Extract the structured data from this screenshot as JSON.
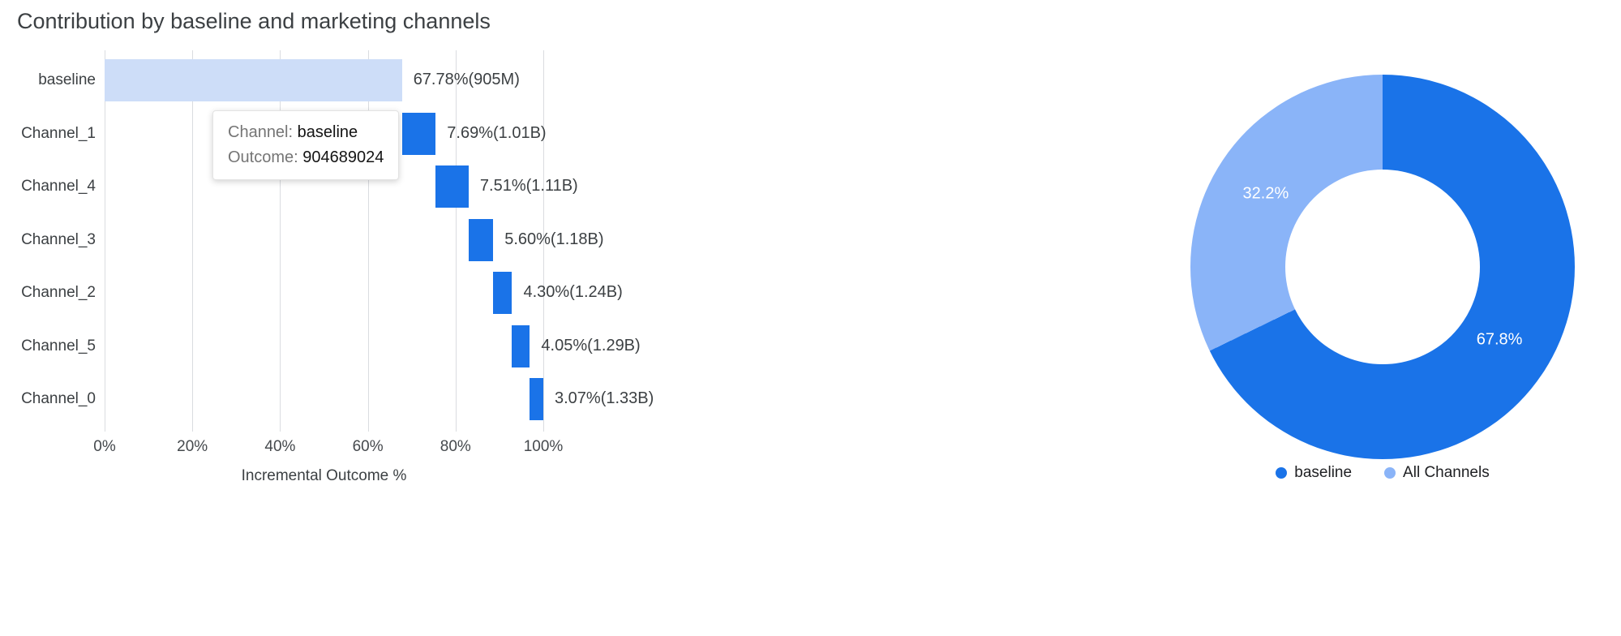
{
  "page": {
    "title": "Contribution by baseline and marketing channels"
  },
  "colors": {
    "primary_blue": "#1a73e8",
    "light_blue": "#8ab4f8",
    "baseline_bar": "#cdddf8",
    "grid": "#dadce0",
    "text_dark": "#3c4043",
    "text_gray": "#757575"
  },
  "tooltip": {
    "channel_label": "Channel:",
    "channel_value": "baseline",
    "outcome_label": "Outcome:",
    "outcome_value": "904689024"
  },
  "chart_data": [
    {
      "type": "bar",
      "subtype": "horizontal-waterfall",
      "title": "Contribution by baseline and marketing channels",
      "categories": [
        "baseline",
        "Channel_1",
        "Channel_4",
        "Channel_3",
        "Channel_2",
        "Channel_5",
        "Channel_0"
      ],
      "values_pct": [
        67.78,
        7.69,
        7.51,
        5.6,
        4.3,
        4.05,
        3.07
      ],
      "cumulative_labels": [
        "67.78%(905M)",
        "7.69%(1.01B)",
        "7.51%(1.11B)",
        "5.60%(1.18B)",
        "4.30%(1.24B)",
        "4.05%(1.29B)",
        "3.07%(1.33B)"
      ],
      "bar_colors": [
        "#cdddf8",
        "#1a73e8",
        "#1a73e8",
        "#1a73e8",
        "#1a73e8",
        "#1a73e8",
        "#1a73e8"
      ],
      "xlabel": "Incremental Outcome %",
      "x_ticks": [
        "0%",
        "20%",
        "40%",
        "60%",
        "80%",
        "100%"
      ],
      "x_tick_values": [
        0,
        20,
        40,
        60,
        80,
        100
      ],
      "xlim": [
        0,
        100
      ],
      "grid": "vertical-on"
    },
    {
      "type": "pie",
      "subtype": "donut",
      "legend_position": "bottom",
      "slices": [
        {
          "label": "baseline",
          "value": 67.8,
          "display": "67.8%",
          "color": "#1a73e8"
        },
        {
          "label": "All Channels",
          "value": 32.2,
          "display": "32.2%",
          "color": "#8ab4f8"
        }
      ]
    }
  ]
}
